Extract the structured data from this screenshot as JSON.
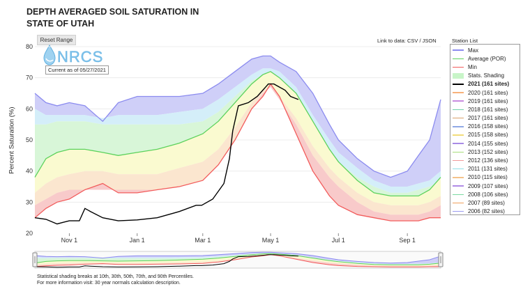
{
  "title_line1": "DEPTH AVERAGED SOIL SATURATION IN",
  "title_line2": "STATE OF UTAH",
  "reset_range_label": "Reset Range",
  "logo_text": "NRCS",
  "current_as_of": "Current as of 05/27/2021",
  "data_links": {
    "prefix": "Link to data:",
    "csv": "CSV",
    "sep": "/",
    "json": "JSON"
  },
  "station_list_label": "Station List",
  "footnote_line1": "Statistical shading breaks at 10th, 30th, 50th, 70th, and 90th Percentiles.",
  "footnote_line2": "For more information visit: 30 year normals calculation description.",
  "legend": [
    {
      "label": "Max",
      "color": "#8b8bef",
      "bold": false
    },
    {
      "label": "Average (POR)",
      "color": "#5cd25c",
      "bold": false
    },
    {
      "label": "Min",
      "color": "#f25c5c",
      "bold": false
    },
    {
      "label": "Stats. Shading",
      "color": "#c8f5c8",
      "bold": false,
      "shade": true
    },
    {
      "label": "2021 (161 sites)",
      "color": "#000000",
      "bold": true
    },
    {
      "label": "2020 (161 sites)",
      "color": "#f7b27a",
      "bold": false
    },
    {
      "label": "2019 (161 sites)",
      "color": "#c98be0",
      "bold": false
    },
    {
      "label": "2018 (161 sites)",
      "color": "#6fd1a9",
      "bold": false
    },
    {
      "label": "2017 (161 sites)",
      "color": "#d9a06a",
      "bold": false
    },
    {
      "label": "2016 (158 sites)",
      "color": "#8fa9e6",
      "bold": false
    },
    {
      "label": "2015 (158 sites)",
      "color": "#f2dc7a",
      "bold": false
    },
    {
      "label": "2014 (155 sites)",
      "color": "#a88be6",
      "bold": false
    },
    {
      "label": "2013 (152 sites)",
      "color": "#a6dd7a",
      "bold": false
    },
    {
      "label": "2012 (136 sites)",
      "color": "#f29a9a",
      "bold": false
    },
    {
      "label": "2011 (131 sites)",
      "color": "#8fe0e6",
      "bold": false
    },
    {
      "label": "2010 (115 sites)",
      "color": "#f5c28a",
      "bold": false
    },
    {
      "label": "2009 (107 sites)",
      "color": "#b08be6",
      "bold": false
    },
    {
      "label": "2008 (106 sites)",
      "color": "#7ad9a0",
      "bold": false
    },
    {
      "label": "2007 (89 sites)",
      "color": "#f0a05a",
      "bold": false
    },
    {
      "label": "2006 (82 sites)",
      "color": "#9a9af0",
      "bold": false
    }
  ],
  "chart_data": {
    "type": "area",
    "title": "DEPTH AVERAGED SOIL SATURATION IN STATE OF UTAH",
    "ylabel": "Percent Saturation (%)",
    "xlabel": "",
    "ylim": [
      20,
      80
    ],
    "xlim": [
      0,
      365
    ],
    "x_unit": "days since Oct 1",
    "yticks": [
      20,
      30,
      40,
      50,
      60,
      70,
      80
    ],
    "xticks": [
      {
        "label": "Nov 1",
        "x": 31
      },
      {
        "label": "Jan 1",
        "x": 92
      },
      {
        "label": "Mar 1",
        "x": 151
      },
      {
        "label": "May 1",
        "x": 212
      },
      {
        "label": "Jul 1",
        "x": 273
      },
      {
        "label": "Sep 1",
        "x": 335
      }
    ],
    "x": [
      0,
      10,
      20,
      31,
      45,
      61,
      75,
      92,
      110,
      130,
      151,
      165,
      180,
      195,
      205,
      212,
      220,
      235,
      250,
      265,
      273,
      290,
      305,
      320,
      335,
      345,
      355,
      365
    ],
    "series": [
      {
        "name": "Max",
        "color": "#8b8bef",
        "values": [
          65,
          62,
          61,
          62,
          61,
          56,
          62,
          64,
          64,
          64,
          65,
          68,
          72,
          76,
          77,
          77,
          75,
          72,
          65,
          55,
          50,
          44,
          40,
          38,
          40,
          45,
          50,
          63
        ]
      },
      {
        "name": "Stats 90th",
        "color": "#c8c8f8",
        "values": [
          60,
          58,
          58,
          58,
          58,
          57,
          58,
          58,
          58,
          59,
          60,
          63,
          67,
          71,
          73,
          73,
          72,
          67,
          58,
          50,
          46,
          41,
          37,
          35,
          35,
          36,
          37,
          40
        ]
      },
      {
        "name": "Stats 70th",
        "color": "#c8ecf8",
        "values": [
          55,
          55,
          56,
          56,
          56,
          55,
          55,
          55,
          55,
          55,
          56,
          59,
          64,
          69,
          71,
          71,
          69,
          63,
          53,
          46,
          43,
          38,
          35,
          33,
          33,
          34,
          35,
          37
        ]
      },
      {
        "name": "Average (POR)",
        "color": "#5cd25c",
        "values": [
          38,
          44,
          46,
          47,
          47,
          46,
          45,
          46,
          47,
          49,
          52,
          56,
          62,
          68,
          71,
          72,
          70,
          65,
          56,
          47,
          43,
          37,
          33,
          32,
          32,
          32,
          34,
          38
        ]
      },
      {
        "name": "Stats 30th",
        "color": "#f8f8c8",
        "values": [
          33,
          36,
          38,
          39,
          40,
          40,
          39,
          39,
          39,
          41,
          43,
          47,
          54,
          62,
          66,
          67,
          64,
          57,
          48,
          41,
          38,
          33,
          30,
          29,
          29,
          29,
          30,
          32
        ]
      },
      {
        "name": "Stats 10th",
        "color": "#f8d8d8",
        "values": [
          29,
          31,
          33,
          34,
          34,
          34,
          34,
          34,
          34,
          35,
          37,
          42,
          50,
          60,
          65,
          67,
          63,
          55,
          45,
          38,
          35,
          30,
          27,
          26,
          26,
          26,
          27,
          29
        ]
      },
      {
        "name": "Min",
        "color": "#f25c5c",
        "values": [
          25,
          28,
          30,
          31,
          34,
          36,
          33,
          33,
          34,
          35,
          37,
          42,
          50,
          60,
          64,
          68,
          64,
          52,
          40,
          32,
          29,
          26,
          25,
          24,
          24,
          24,
          25,
          25
        ]
      },
      {
        "name": "2021 (161 sites)",
        "color": "#000000",
        "x": [
          0,
          10,
          20,
          25,
          31,
          40,
          45,
          50,
          61,
          75,
          92,
          110,
          130,
          145,
          150,
          160,
          170,
          175,
          178,
          183,
          192,
          200,
          205,
          210,
          215,
          220,
          225,
          230,
          237
        ],
        "values": [
          25,
          24.5,
          23,
          23.5,
          24,
          24,
          28,
          27,
          25,
          24,
          24.3,
          25,
          27,
          29,
          29,
          31,
          36,
          44,
          53,
          61,
          62,
          64,
          66,
          68,
          68,
          67,
          66,
          64,
          63
        ]
      }
    ],
    "shading_note": "Statistical shading breaks at 10th, 30th, 50th, 70th, and 90th Percentiles."
  }
}
